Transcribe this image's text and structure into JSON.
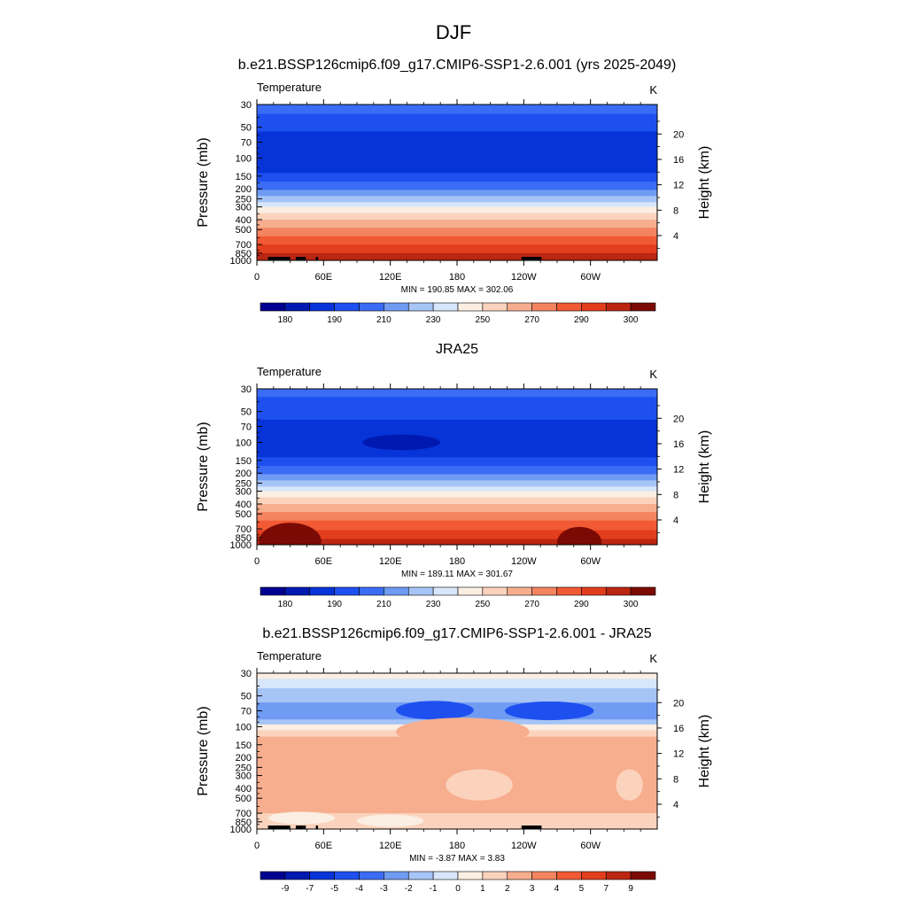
{
  "figure": {
    "title": "DJF"
  },
  "colors": {
    "temperature_levels": [
      "#000090",
      "#0019b0",
      "#0734d8",
      "#1e50f0",
      "#3b6cf5",
      "#6f9bf2",
      "#a6c4f5",
      "#d7e6fb",
      "#fbeee2",
      "#fbd3bd",
      "#f7ae8e",
      "#f48460",
      "#f15a34",
      "#e23d1c",
      "#bb2612",
      "#7c0a04"
    ],
    "overlay_black": "#000000"
  },
  "chart_data": [
    {
      "type": "heatmap",
      "panel_title": "b.e21.BSSP126cmip6.f09_g17.CMIP6-SSP1-2.6.001 (yrs 2025-2049)",
      "left_label": "Temperature",
      "right_label": "K",
      "ylabel": "Pressure (mb)",
      "ylabel_right": "Height (km)",
      "y_ticks": [
        "30",
        "50",
        "70",
        "100",
        "150",
        "200",
        "250",
        "300",
        "400",
        "500",
        "700",
        "850",
        "1000"
      ],
      "y_tick_values": [
        30,
        50,
        70,
        100,
        150,
        200,
        250,
        300,
        400,
        500,
        700,
        850,
        1000
      ],
      "height_ticks": [
        "20",
        "16",
        "12",
        "8",
        "4"
      ],
      "height_tick_values": [
        20,
        16,
        12,
        8,
        4
      ],
      "x_ticks": [
        "0",
        "60E",
        "120E",
        "180",
        "120W",
        "60W"
      ],
      "x_tick_values": [
        0,
        60,
        120,
        180,
        240,
        300
      ],
      "xlim": [
        0,
        360
      ],
      "stats": "MIN = 190.85  MAX = 302.06",
      "colorbar_labels": [
        "180",
        "190",
        "210",
        "230",
        "250",
        "270",
        "290",
        "300"
      ],
      "colorbar_label_positions": [
        1,
        3,
        5,
        7,
        9,
        11,
        13,
        15
      ],
      "bands": [
        {
          "p_top": 30,
          "p_bot": 37,
          "level": 4
        },
        {
          "p_top": 37,
          "p_bot": 55,
          "level": 3
        },
        {
          "p_top": 55,
          "p_bot": 140,
          "level": 2
        },
        {
          "p_top": 140,
          "p_bot": 170,
          "level": 3
        },
        {
          "p_top": 170,
          "p_bot": 205,
          "level": 4
        },
        {
          "p_top": 205,
          "p_bot": 235,
          "level": 5
        },
        {
          "p_top": 235,
          "p_bot": 270,
          "level": 6
        },
        {
          "p_top": 270,
          "p_bot": 300,
          "level": 7
        },
        {
          "p_top": 300,
          "p_bot": 345,
          "level": 8
        },
        {
          "p_top": 345,
          "p_bot": 400,
          "level": 9
        },
        {
          "p_top": 400,
          "p_bot": 480,
          "level": 10
        },
        {
          "p_top": 480,
          "p_bot": 580,
          "level": 11
        },
        {
          "p_top": 580,
          "p_bot": 700,
          "level": 12
        },
        {
          "p_top": 700,
          "p_bot": 850,
          "level": 13
        },
        {
          "p_top": 850,
          "p_bot": 1000,
          "level": 14
        }
      ],
      "features": [],
      "topography": [
        [
          10,
          30
        ],
        [
          35,
          42
        ],
        [
          42,
          44
        ],
        [
          53,
          55
        ],
        [
          238,
          256
        ]
      ]
    },
    {
      "type": "heatmap",
      "panel_title": "JRA25",
      "left_label": "Temperature",
      "right_label": "K",
      "ylabel": "Pressure (mb)",
      "ylabel_right": "Height (km)",
      "y_ticks": [
        "30",
        "50",
        "70",
        "100",
        "150",
        "200",
        "250",
        "300",
        "400",
        "500",
        "700",
        "850",
        "1000"
      ],
      "y_tick_values": [
        30,
        50,
        70,
        100,
        150,
        200,
        250,
        300,
        400,
        500,
        700,
        850,
        1000
      ],
      "height_ticks": [
        "20",
        "16",
        "12",
        "8",
        "4"
      ],
      "height_tick_values": [
        20,
        16,
        12,
        8,
        4
      ],
      "x_ticks": [
        "0",
        "60E",
        "120E",
        "180",
        "120W",
        "60W"
      ],
      "x_tick_values": [
        0,
        60,
        120,
        180,
        240,
        300
      ],
      "xlim": [
        0,
        360
      ],
      "stats": "MIN = 189.11  MAX = 301.67",
      "colorbar_labels": [
        "180",
        "190",
        "210",
        "230",
        "250",
        "270",
        "290",
        "300"
      ],
      "colorbar_label_positions": [
        1,
        3,
        5,
        7,
        9,
        11,
        13,
        15
      ],
      "bands": [
        {
          "p_top": 30,
          "p_bot": 36,
          "level": 4
        },
        {
          "p_top": 36,
          "p_bot": 60,
          "level": 3
        },
        {
          "p_top": 60,
          "p_bot": 140,
          "level": 2
        },
        {
          "p_top": 140,
          "p_bot": 170,
          "level": 3
        },
        {
          "p_top": 170,
          "p_bot": 205,
          "level": 4
        },
        {
          "p_top": 205,
          "p_bot": 235,
          "level": 5
        },
        {
          "p_top": 235,
          "p_bot": 270,
          "level": 6
        },
        {
          "p_top": 270,
          "p_bot": 300,
          "level": 7
        },
        {
          "p_top": 300,
          "p_bot": 345,
          "level": 8
        },
        {
          "p_top": 345,
          "p_bot": 400,
          "level": 9
        },
        {
          "p_top": 400,
          "p_bot": 480,
          "level": 10
        },
        {
          "p_top": 480,
          "p_bot": 580,
          "level": 11
        },
        {
          "p_top": 580,
          "p_bot": 720,
          "level": 12
        },
        {
          "p_top": 720,
          "p_bot": 880,
          "level": 13
        },
        {
          "p_top": 880,
          "p_bot": 1000,
          "level": 14
        }
      ],
      "features": [
        {
          "lon": 130,
          "p": 100,
          "rlon": 35,
          "rp": 0.05,
          "level": 1
        },
        {
          "lon": 30,
          "p": 930,
          "rlon": 28,
          "rp": 0.12,
          "level": 15
        },
        {
          "lon": 290,
          "p": 950,
          "rlon": 20,
          "rp": 0.1,
          "level": 15
        }
      ],
      "topography": []
    },
    {
      "type": "heatmap",
      "panel_title": "b.e21.BSSP126cmip6.f09_g17.CMIP6-SSP1-2.6.001 - JRA25",
      "left_label": "Temperature",
      "right_label": "K",
      "ylabel": "Pressure (mb)",
      "ylabel_right": "Height (km)",
      "y_ticks": [
        "30",
        "50",
        "70",
        "100",
        "150",
        "200",
        "250",
        "300",
        "400",
        "500",
        "700",
        "850",
        "1000"
      ],
      "y_tick_values": [
        30,
        50,
        70,
        100,
        150,
        200,
        250,
        300,
        400,
        500,
        700,
        850,
        1000
      ],
      "height_ticks": [
        "20",
        "16",
        "12",
        "8",
        "4"
      ],
      "height_tick_values": [
        20,
        16,
        12,
        8,
        4
      ],
      "x_ticks": [
        "0",
        "60E",
        "120E",
        "180",
        "120W",
        "60W"
      ],
      "x_tick_values": [
        0,
        60,
        120,
        180,
        240,
        300
      ],
      "xlim": [
        0,
        360
      ],
      "stats": "MIN = -3.87  MAX =  3.83",
      "colorbar_labels": [
        "-9",
        "-7",
        "-5",
        "-4",
        "-3",
        "-2",
        "-1",
        "0",
        "1",
        "2",
        "3",
        "4",
        "5",
        "7",
        "9"
      ],
      "colorbar_label_positions": [
        1,
        2,
        3,
        4,
        5,
        6,
        7,
        8,
        9,
        10,
        11,
        12,
        13,
        14,
        15
      ],
      "bands": [
        {
          "p_top": 30,
          "p_bot": 34,
          "level": 8
        },
        {
          "p_top": 34,
          "p_bot": 42,
          "level": 7
        },
        {
          "p_top": 42,
          "p_bot": 58,
          "level": 6
        },
        {
          "p_top": 58,
          "p_bot": 85,
          "level": 5
        },
        {
          "p_top": 85,
          "p_bot": 95,
          "level": 6
        },
        {
          "p_top": 95,
          "p_bot": 108,
          "level": 8
        },
        {
          "p_top": 108,
          "p_bot": 125,
          "level": 9
        },
        {
          "p_top": 125,
          "p_bot": 700,
          "level": 10
        },
        {
          "p_top": 700,
          "p_bot": 1000,
          "level": 9
        }
      ],
      "features": [
        {
          "lon": 160,
          "p": 69,
          "rlon": 35,
          "rp": 0.06,
          "level": 3
        },
        {
          "lon": 263,
          "p": 70,
          "rlon": 40,
          "rp": 0.06,
          "level": 3
        },
        {
          "lon": 185,
          "p": 112,
          "rlon": 60,
          "rp": 0.09,
          "level": 10
        },
        {
          "lon": 200,
          "p": 370,
          "rlon": 30,
          "rp": 0.1,
          "level": 9
        },
        {
          "lon": 335,
          "p": 370,
          "rlon": 12,
          "rp": 0.1,
          "level": 9
        },
        {
          "lon": 40,
          "p": 780,
          "rlon": 30,
          "rp": 0.04,
          "level": 8
        },
        {
          "lon": 120,
          "p": 830,
          "rlon": 30,
          "rp": 0.04,
          "level": 8
        }
      ],
      "topography": [
        [
          10,
          30
        ],
        [
          35,
          42
        ],
        [
          42,
          44
        ],
        [
          53,
          55
        ],
        [
          238,
          256
        ]
      ]
    }
  ]
}
